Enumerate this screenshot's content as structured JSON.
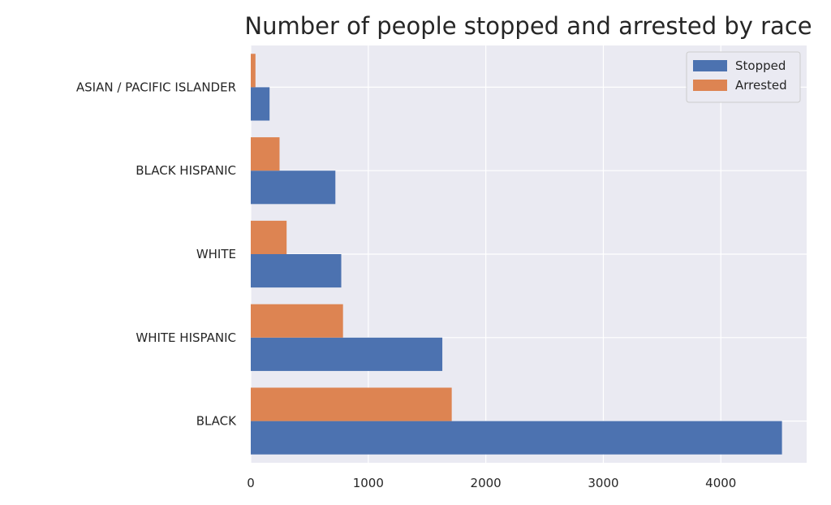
{
  "chart_data": {
    "type": "bar",
    "orientation": "horizontal",
    "title": "Number of people stopped and arrested by race",
    "xlabel": "",
    "ylabel": "",
    "categories": [
      "BLACK",
      "WHITE HISPANIC",
      "WHITE",
      "BLACK HISPANIC",
      "ASIAN / PACIFIC ISLANDER"
    ],
    "series": [
      {
        "name": "Stopped",
        "color": "#4c72b0",
        "values": [
          4520,
          1630,
          770,
          720,
          160
        ]
      },
      {
        "name": "Arrested",
        "color": "#dd8452",
        "values": [
          1710,
          785,
          305,
          245,
          40
        ]
      }
    ],
    "xlim": [
      0,
      4730
    ],
    "xticks": [
      0,
      1000,
      2000,
      3000,
      4000
    ],
    "xtick_labels": [
      "0",
      "1000",
      "2000",
      "3000",
      "4000"
    ],
    "grid": true,
    "legend_position": "top-right",
    "background_color": "#eaeaf2"
  }
}
